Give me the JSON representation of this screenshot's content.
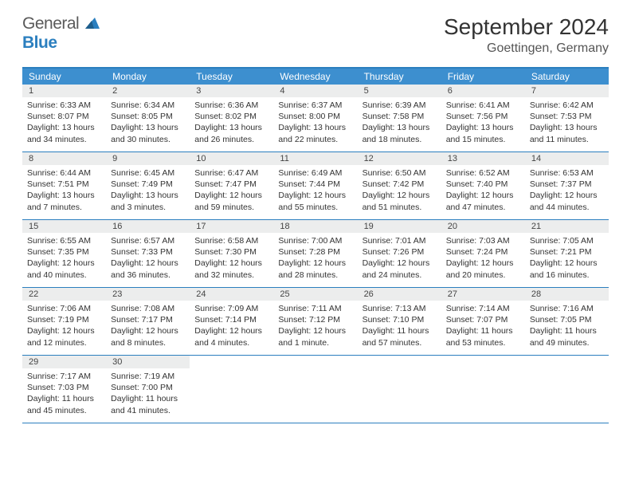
{
  "logo": {
    "general": "General",
    "blue": "Blue"
  },
  "title": "September 2024",
  "location": "Goettingen, Germany",
  "colors": {
    "header_bg": "#3d8fcf",
    "border": "#2b7fbf",
    "num_bg": "#eceded",
    "text": "#333333"
  },
  "day_headers": [
    "Sunday",
    "Monday",
    "Tuesday",
    "Wednesday",
    "Thursday",
    "Friday",
    "Saturday"
  ],
  "weeks": [
    [
      {
        "n": "1",
        "sr": "6:33 AM",
        "ss": "8:07 PM",
        "dl": "13 hours and 34 minutes."
      },
      {
        "n": "2",
        "sr": "6:34 AM",
        "ss": "8:05 PM",
        "dl": "13 hours and 30 minutes."
      },
      {
        "n": "3",
        "sr": "6:36 AM",
        "ss": "8:02 PM",
        "dl": "13 hours and 26 minutes."
      },
      {
        "n": "4",
        "sr": "6:37 AM",
        "ss": "8:00 PM",
        "dl": "13 hours and 22 minutes."
      },
      {
        "n": "5",
        "sr": "6:39 AM",
        "ss": "7:58 PM",
        "dl": "13 hours and 18 minutes."
      },
      {
        "n": "6",
        "sr": "6:41 AM",
        "ss": "7:56 PM",
        "dl": "13 hours and 15 minutes."
      },
      {
        "n": "7",
        "sr": "6:42 AM",
        "ss": "7:53 PM",
        "dl": "13 hours and 11 minutes."
      }
    ],
    [
      {
        "n": "8",
        "sr": "6:44 AM",
        "ss": "7:51 PM",
        "dl": "13 hours and 7 minutes."
      },
      {
        "n": "9",
        "sr": "6:45 AM",
        "ss": "7:49 PM",
        "dl": "13 hours and 3 minutes."
      },
      {
        "n": "10",
        "sr": "6:47 AM",
        "ss": "7:47 PM",
        "dl": "12 hours and 59 minutes."
      },
      {
        "n": "11",
        "sr": "6:49 AM",
        "ss": "7:44 PM",
        "dl": "12 hours and 55 minutes."
      },
      {
        "n": "12",
        "sr": "6:50 AM",
        "ss": "7:42 PM",
        "dl": "12 hours and 51 minutes."
      },
      {
        "n": "13",
        "sr": "6:52 AM",
        "ss": "7:40 PM",
        "dl": "12 hours and 47 minutes."
      },
      {
        "n": "14",
        "sr": "6:53 AM",
        "ss": "7:37 PM",
        "dl": "12 hours and 44 minutes."
      }
    ],
    [
      {
        "n": "15",
        "sr": "6:55 AM",
        "ss": "7:35 PM",
        "dl": "12 hours and 40 minutes."
      },
      {
        "n": "16",
        "sr": "6:57 AM",
        "ss": "7:33 PM",
        "dl": "12 hours and 36 minutes."
      },
      {
        "n": "17",
        "sr": "6:58 AM",
        "ss": "7:30 PM",
        "dl": "12 hours and 32 minutes."
      },
      {
        "n": "18",
        "sr": "7:00 AM",
        "ss": "7:28 PM",
        "dl": "12 hours and 28 minutes."
      },
      {
        "n": "19",
        "sr": "7:01 AM",
        "ss": "7:26 PM",
        "dl": "12 hours and 24 minutes."
      },
      {
        "n": "20",
        "sr": "7:03 AM",
        "ss": "7:24 PM",
        "dl": "12 hours and 20 minutes."
      },
      {
        "n": "21",
        "sr": "7:05 AM",
        "ss": "7:21 PM",
        "dl": "12 hours and 16 minutes."
      }
    ],
    [
      {
        "n": "22",
        "sr": "7:06 AM",
        "ss": "7:19 PM",
        "dl": "12 hours and 12 minutes."
      },
      {
        "n": "23",
        "sr": "7:08 AM",
        "ss": "7:17 PM",
        "dl": "12 hours and 8 minutes."
      },
      {
        "n": "24",
        "sr": "7:09 AM",
        "ss": "7:14 PM",
        "dl": "12 hours and 4 minutes."
      },
      {
        "n": "25",
        "sr": "7:11 AM",
        "ss": "7:12 PM",
        "dl": "12 hours and 1 minute."
      },
      {
        "n": "26",
        "sr": "7:13 AM",
        "ss": "7:10 PM",
        "dl": "11 hours and 57 minutes."
      },
      {
        "n": "27",
        "sr": "7:14 AM",
        "ss": "7:07 PM",
        "dl": "11 hours and 53 minutes."
      },
      {
        "n": "28",
        "sr": "7:16 AM",
        "ss": "7:05 PM",
        "dl": "11 hours and 49 minutes."
      }
    ],
    [
      {
        "n": "29",
        "sr": "7:17 AM",
        "ss": "7:03 PM",
        "dl": "11 hours and 45 minutes."
      },
      {
        "n": "30",
        "sr": "7:19 AM",
        "ss": "7:00 PM",
        "dl": "11 hours and 41 minutes."
      },
      {
        "empty": true
      },
      {
        "empty": true
      },
      {
        "empty": true
      },
      {
        "empty": true
      },
      {
        "empty": true
      }
    ]
  ],
  "labels": {
    "sunrise": "Sunrise: ",
    "sunset": "Sunset: ",
    "daylight": "Daylight: "
  }
}
